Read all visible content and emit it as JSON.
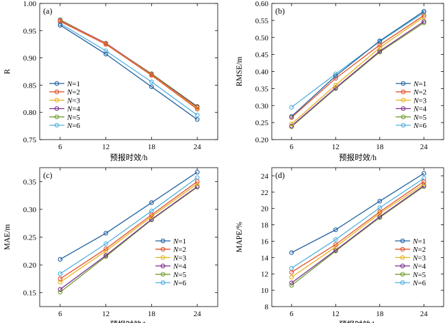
{
  "colors": {
    "N=1": "#1f5f9e",
    "N=2": "#e2502a",
    "N=3": "#e8b11c",
    "N=4": "#7b2f8e",
    "N=5": "#6f9e2f",
    "N=6": "#4fb0dc"
  },
  "chart_data": [
    {
      "panel": "(a)",
      "type": "line",
      "ylabel": "R",
      "xlabel": "预报时效/h",
      "x": [
        6,
        12,
        18,
        24
      ],
      "ylim": [
        0.75,
        1.0
      ],
      "yticks": [
        0.75,
        0.8,
        0.85,
        0.9,
        0.95,
        1.0
      ],
      "ytick_labels": [
        "0.75",
        "0.80",
        "0.85",
        "0.90",
        "0.95",
        "1.00"
      ],
      "legend_position": "bottom-left",
      "series": [
        {
          "name": "N=1",
          "values": [
            0.96,
            0.907,
            0.847,
            0.787
          ]
        },
        {
          "name": "N=2",
          "values": [
            0.967,
            0.925,
            0.868,
            0.806
          ]
        },
        {
          "name": "N=3",
          "values": [
            0.968,
            0.926,
            0.869,
            0.808
          ]
        },
        {
          "name": "N=4",
          "values": [
            0.969,
            0.927,
            0.87,
            0.81
          ]
        },
        {
          "name": "N=5",
          "values": [
            0.97,
            0.926,
            0.871,
            0.811
          ]
        },
        {
          "name": "N=6",
          "values": [
            0.963,
            0.913,
            0.856,
            0.795
          ]
        }
      ]
    },
    {
      "panel": "(b)",
      "type": "line",
      "ylabel": "RMSE/m",
      "xlabel": "预报时效/h",
      "x": [
        6,
        12,
        18,
        24
      ],
      "ylim": [
        0.2,
        0.6
      ],
      "yticks": [
        0.2,
        0.25,
        0.3,
        0.35,
        0.4,
        0.45,
        0.5,
        0.55,
        0.6
      ],
      "ytick_labels": [
        "0.20",
        "0.25",
        "0.30",
        "0.35",
        "0.40",
        "0.45",
        "0.50",
        "0.55",
        "0.60"
      ],
      "legend_position": "bottom-right",
      "series": [
        {
          "name": "N=1",
          "values": [
            0.268,
            0.387,
            0.49,
            0.577
          ]
        },
        {
          "name": "N=2",
          "values": [
            0.265,
            0.38,
            0.478,
            0.565
          ]
        },
        {
          "name": "N=3",
          "values": [
            0.246,
            0.36,
            0.47,
            0.56
          ]
        },
        {
          "name": "N=4",
          "values": [
            0.24,
            0.352,
            0.46,
            0.547
          ]
        },
        {
          "name": "N=5",
          "values": [
            0.238,
            0.35,
            0.457,
            0.543
          ]
        },
        {
          "name": "N=6",
          "values": [
            0.295,
            0.393,
            0.488,
            0.573
          ]
        }
      ]
    },
    {
      "panel": "(c)",
      "type": "line",
      "ylabel": "MAE/m",
      "xlabel": "预报时效/h",
      "x": [
        6,
        12,
        18,
        24
      ],
      "ylim": [
        0.125,
        0.375
      ],
      "yticks": [
        0.15,
        0.2,
        0.25,
        0.3,
        0.35
      ],
      "ytick_labels": [
        "0.15",
        "0.20",
        "0.25",
        "0.30",
        "0.35"
      ],
      "legend_position": "bottom-right",
      "series": [
        {
          "name": "N=1",
          "values": [
            0.21,
            0.257,
            0.312,
            0.367
          ]
        },
        {
          "name": "N=2",
          "values": [
            0.175,
            0.229,
            0.29,
            0.35
          ]
        },
        {
          "name": "N=3",
          "values": [
            0.169,
            0.225,
            0.287,
            0.346
          ]
        },
        {
          "name": "N=4",
          "values": [
            0.156,
            0.217,
            0.282,
            0.341
          ]
        },
        {
          "name": "N=5",
          "values": [
            0.151,
            0.215,
            0.281,
            0.34
          ]
        },
        {
          "name": "N=6",
          "values": [
            0.184,
            0.238,
            0.297,
            0.357
          ]
        }
      ]
    },
    {
      "panel": "(d)",
      "type": "line",
      "ylabel": "MAPE/%",
      "xlabel": "预报时效/h",
      "x": [
        6,
        12,
        18,
        24
      ],
      "ylim": [
        8,
        25
      ],
      "yticks": [
        8,
        10,
        12,
        14,
        16,
        18,
        20,
        22,
        24
      ],
      "ytick_labels": [
        "8",
        "10",
        "12",
        "14",
        "16",
        "18",
        "20",
        "22",
        "24"
      ],
      "legend_position": "bottom-right",
      "series": [
        {
          "name": "N=1",
          "values": [
            14.6,
            17.4,
            20.9,
            24.3
          ]
        },
        {
          "name": "N=2",
          "values": [
            12.2,
            15.6,
            19.6,
            23.3
          ]
        },
        {
          "name": "N=3",
          "values": [
            11.6,
            15.3,
            19.4,
            23.0
          ]
        },
        {
          "name": "N=4",
          "values": [
            10.9,
            14.9,
            19.0,
            22.8
          ]
        },
        {
          "name": "N=5",
          "values": [
            10.6,
            14.8,
            18.9,
            22.7
          ]
        },
        {
          "name": "N=6",
          "values": [
            12.7,
            16.2,
            20.1,
            23.7
          ]
        }
      ]
    }
  ]
}
